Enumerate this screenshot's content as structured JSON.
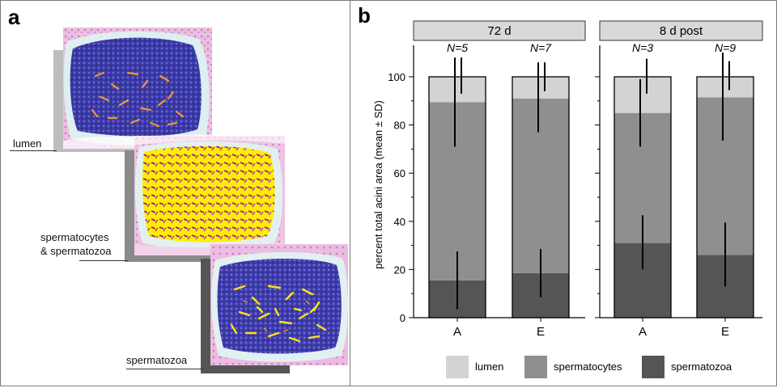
{
  "panel_a": {
    "letter": "a",
    "labels": {
      "lumen": "lumen",
      "spermatocytes_line1": "spermatocytes",
      "spermatocytes_line2": "& spermatozoa",
      "spermatozoa": "spermatozoa"
    }
  },
  "chart_data": {
    "type": "bar",
    "panel_letter": "b",
    "stacked": true,
    "ylabel": "percent total acini area  (mean ± SD)",
    "ylim": [
      0,
      100
    ],
    "yticks": [
      0,
      20,
      40,
      60,
      80,
      100
    ],
    "facets": [
      {
        "title": "72 d",
        "categories": [
          "A",
          "E"
        ],
        "n_labels": [
          "N=5",
          "N=7"
        ],
        "stack": {
          "spermatozoa": [
            15.5,
            18.5
          ],
          "spermatocytes": [
            74,
            72.5
          ],
          "lumen": [
            10.5,
            9
          ]
        },
        "error_bars": {
          "spermatozoa": [
            [
              3.5,
              27.5
            ],
            [
              8.5,
              28.5
            ]
          ],
          "spermatocytes_top": [
            [
              71,
              108
            ],
            [
              77,
              106
            ]
          ],
          "lumen": [
            [
              93,
              108
            ],
            [
              94,
              106
            ]
          ]
        }
      },
      {
        "title": "8 d post",
        "categories": [
          "A",
          "E"
        ],
        "n_labels": [
          "N=3",
          "N=9"
        ],
        "stack": {
          "spermatozoa": [
            31,
            26
          ],
          "spermatocytes": [
            54,
            65.5
          ],
          "lumen": [
            15,
            8.5
          ]
        },
        "error_bars": {
          "spermatozoa": [
            [
              20,
              42.5
            ],
            [
              13,
              39.5
            ]
          ],
          "spermatocytes_top": [
            [
              71,
              99
            ],
            [
              73.5,
              110
            ]
          ],
          "lumen": [
            [
              93,
              107.5
            ],
            [
              94.5,
              106.5
            ]
          ]
        }
      }
    ],
    "legend": [
      {
        "name": "lumen",
        "color": "#d3d3d3"
      },
      {
        "name": "spermatocytes",
        "color": "#8f8f8f"
      },
      {
        "name": "spermatozoa",
        "color": "#555555"
      }
    ],
    "grid": false,
    "legend_position": "bottom"
  },
  "colors": {
    "lumen": "#d3d3d3",
    "spermatocytes": "#8f8f8f",
    "spermatozoa": "#555555",
    "strip": "#d9d9d9",
    "tissue_purple": "#3c3ba8",
    "tissue_yellow": "#ffee00",
    "tissue_pink": "#e9a6d1"
  }
}
